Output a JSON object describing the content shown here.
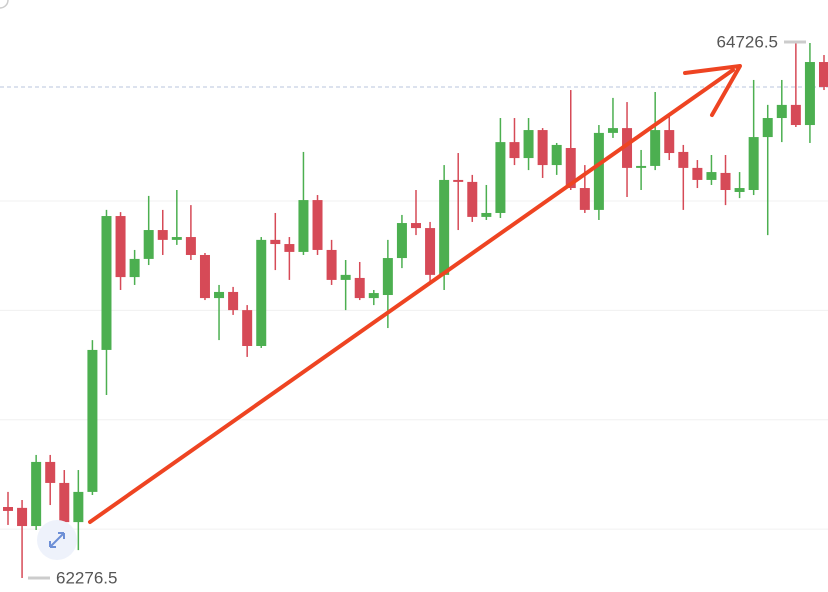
{
  "chart_data": {
    "type": "candlestick",
    "up_color": "#4caf50",
    "down_color": "#d64a57",
    "ylim": [
      62212.5,
      64918.5
    ],
    "ygrid": [
      62500,
      63000,
      63500,
      64000
    ],
    "price_markers": [
      64726.5,
      62276.5
    ],
    "open": [
      62601,
      62597,
      62514,
      62807,
      62711,
      62532,
      62670,
      63319,
      63931,
      63652,
      63735,
      63867,
      63822,
      63835,
      63753,
      63556,
      63584,
      63501,
      63337,
      63822,
      63803,
      63767,
      64004,
      63776,
      63639,
      63648,
      63556,
      63570,
      63739,
      63899,
      63876,
      63662,
      64096,
      64087,
      63927,
      63945,
      64269,
      64196,
      64324,
      64164,
      64242,
      64059,
      63959,
      64311,
      64333,
      64151,
      64160,
      64324,
      64224,
      64151,
      64096,
      64128,
      64041,
      64050,
      64292,
      64379,
      64439,
      64347,
      64635
    ],
    "high": [
      62670,
      62633,
      62839,
      62839,
      62770,
      62770,
      63364,
      63959,
      63949,
      63776,
      64023,
      63959,
      64050,
      63981,
      63762,
      63616,
      63607,
      63524,
      63835,
      63945,
      63835,
      64224,
      64027,
      63822,
      63730,
      63721,
      63593,
      63822,
      63936,
      64050,
      63904,
      64164,
      64219,
      64119,
      64073,
      64379,
      64379,
      64379,
      64333,
      64265,
      64507,
      64164,
      64347,
      64471,
      64452,
      64233,
      64498,
      64393,
      64256,
      64187,
      64210,
      64210,
      64132,
      64553,
      64439,
      64553,
      64726.5,
      64722,
      64667
    ],
    "low": [
      62519,
      62276.5,
      62496,
      62610,
      62519,
      62404,
      62656,
      63113,
      63593,
      63616,
      63707,
      63753,
      63799,
      63730,
      63547,
      63364,
      63479,
      63287,
      63328,
      63684,
      63639,
      63753,
      63753,
      63616,
      63501,
      63547,
      63524,
      63419,
      63693,
      63844,
      63629,
      63593,
      63867,
      63904,
      63913,
      63922,
      64164,
      64141,
      64105,
      64119,
      64050,
      63945,
      63913,
      64288,
      64018,
      64050,
      64141,
      64187,
      63959,
      64059,
      64073,
      63981,
      64013,
      64027,
      63844,
      64269,
      64338,
      64265,
      64507
    ],
    "close": [
      62583,
      62514,
      62807,
      62711,
      62532,
      62670,
      63319,
      63931,
      63652,
      63735,
      63867,
      63822,
      63835,
      63753,
      63556,
      63584,
      63501,
      63337,
      63822,
      63803,
      63767,
      64004,
      63776,
      63639,
      63662,
      63556,
      63579,
      63739,
      63899,
      63876,
      63662,
      64096,
      64087,
      63927,
      63945,
      64269,
      64196,
      64324,
      64164,
      64256,
      64059,
      63959,
      64311,
      64333,
      64151,
      64160,
      64324,
      64219,
      64151,
      64096,
      64132,
      64050,
      64059,
      64292,
      64379,
      64439,
      64347,
      64635,
      64521
    ]
  }
}
